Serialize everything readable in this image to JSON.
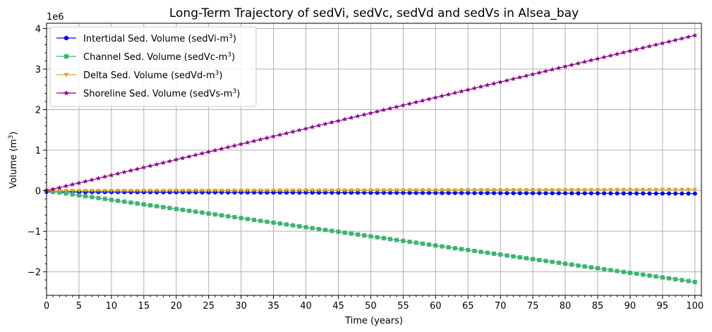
{
  "chart_data": {
    "type": "line",
    "title": "Long-Term Trajectory of sedVi, sedVc, sedVd and sedVs in Alsea_bay",
    "xlabel": "Time (years)",
    "ylabel_main": "Volume (m",
    "ylabel_sup": "3",
    "ylabel_end": ")",
    "offset_text": "1e6",
    "x_ticks": [
      0,
      5,
      10,
      15,
      20,
      25,
      30,
      35,
      40,
      45,
      50,
      55,
      60,
      65,
      70,
      75,
      80,
      85,
      90,
      95,
      100
    ],
    "y_ticks": [
      -2,
      -1,
      0,
      1,
      2,
      3,
      4
    ],
    "y_tick_labels": [
      "−2",
      "−1",
      "0",
      "1",
      "2",
      "3",
      "4"
    ],
    "xlim": [
      0,
      101
    ],
    "ylim": [
      -2.58,
      4.13
    ],
    "y_scale_note": "values in units of 1e6 m^3",
    "grid": true,
    "legend_position": "upper-left",
    "x_range": {
      "start": 0,
      "end": 100,
      "step": 1
    },
    "series": [
      {
        "name": "Intertidal Sed. Volume (sedVi-m",
        "sup": "3",
        "close": ")",
        "color": "#0000ff",
        "marker": "circle",
        "start": -0.03,
        "end": -0.07
      },
      {
        "name": "Channel Sed. Volume (sedVc-m",
        "sup": "3",
        "close": ")",
        "color": "#3cb371",
        "marker": "square",
        "start": 0.0,
        "end": -2.25
      },
      {
        "name": "Delta Sed. Volume (sedVd-m",
        "sup": "3",
        "close": ")",
        "color": "#daa520",
        "marker": "triangle-down",
        "start": 0.0,
        "end": 0.03
      },
      {
        "name": "Shoreline Sed. Volume (sedVs-m",
        "sup": "3",
        "close": ")",
        "color": "#8b008b",
        "marker": "star",
        "start": 0.0,
        "end": 3.83
      }
    ]
  }
}
